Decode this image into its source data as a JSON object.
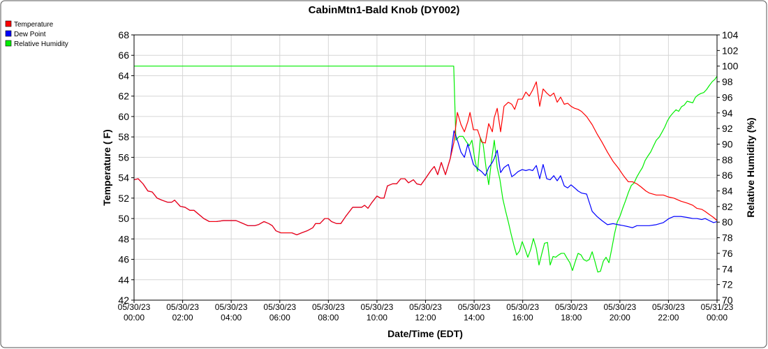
{
  "chart_data": {
    "type": "line",
    "title": "CabinMtn1-Bald Knob (DY002)",
    "xlabel": "Date/Time (EDT)",
    "ylabel": "Temperature ( F)",
    "y2label": "Relative Humidity (%)",
    "grid": true,
    "legend": "top-left",
    "xlim": [
      0,
      24
    ],
    "xticks": [
      {
        "value": 0,
        "label": "05/30/23 00:00"
      },
      {
        "value": 2,
        "label": "05/30/23 02:00"
      },
      {
        "value": 4,
        "label": "05/30/23 04:00"
      },
      {
        "value": 6,
        "label": "05/30/23 06:00"
      },
      {
        "value": 8,
        "label": "05/30/23 08:00"
      },
      {
        "value": 10,
        "label": "05/30/23 10:00"
      },
      {
        "value": 12,
        "label": "05/30/23 12:00"
      },
      {
        "value": 14,
        "label": "05/30/23 14:00"
      },
      {
        "value": 16,
        "label": "05/30/23 16:00"
      },
      {
        "value": 18,
        "label": "05/30/23 18:00"
      },
      {
        "value": 20,
        "label": "05/30/23 20:00"
      },
      {
        "value": 22,
        "label": "05/30/23 22:00"
      },
      {
        "value": 24,
        "label": "05/31/23 00:00"
      }
    ],
    "ylim": [
      42,
      68
    ],
    "yticks": [
      42,
      44,
      46,
      48,
      50,
      52,
      54,
      56,
      58,
      60,
      62,
      64,
      66,
      68
    ],
    "y2lim": [
      70,
      104
    ],
    "y2ticks": [
      70,
      72,
      74,
      76,
      78,
      80,
      82,
      84,
      86,
      88,
      90,
      92,
      94,
      96,
      98,
      100,
      102,
      104
    ],
    "series": [
      {
        "name": "Temperature",
        "color": "#ff0000",
        "x": [
          0,
          0.17,
          0.37,
          0.57,
          0.75,
          0.95,
          1.15,
          1.38,
          1.55,
          1.67,
          1.9,
          2.1,
          2.3,
          2.47,
          2.67,
          2.87,
          3.1,
          3.39,
          3.68,
          3.97,
          4.2,
          4.4,
          4.69,
          4.97,
          5.12,
          5.35,
          5.55,
          5.69,
          5.84,
          6.04,
          6.27,
          6.5,
          6.7,
          6.9,
          7.13,
          7.36,
          7.47,
          7.65,
          7.85,
          7.99,
          8.13,
          8.34,
          8.51,
          8.71,
          9.0,
          9.2,
          9.37,
          9.49,
          9.63,
          9.77,
          10.0,
          10.15,
          10.29,
          10.43,
          10.64,
          10.81,
          10.98,
          11.15,
          11.3,
          11.5,
          11.64,
          11.81,
          12.02,
          12.22,
          12.36,
          12.5,
          12.65,
          12.82,
          13.02,
          13.17,
          13.31,
          13.46,
          13.6,
          13.74,
          13.83,
          13.97,
          14.14,
          14.31,
          14.46,
          14.6,
          14.75,
          14.83,
          14.95,
          15.09,
          15.23,
          15.41,
          15.55,
          15.67,
          15.81,
          15.98,
          16.13,
          16.27,
          16.41,
          16.56,
          16.7,
          16.84,
          16.99,
          17.13,
          17.28,
          17.42,
          17.56,
          17.71,
          17.85,
          17.99,
          18.14,
          18.28,
          18.42,
          18.63,
          18.86,
          19.06,
          19.26,
          19.49,
          19.72,
          19.92,
          20.15,
          20.35,
          20.52,
          20.7,
          20.87,
          21.07,
          21.21,
          21.5,
          21.79,
          22.02,
          22.22,
          22.51,
          22.79,
          23.0,
          23.17,
          23.37,
          23.51,
          23.68,
          23.86,
          24.0
        ],
        "values": [
          53.8,
          53.9,
          53.4,
          52.7,
          52.6,
          52.0,
          51.8,
          51.6,
          51.6,
          51.8,
          51.2,
          51.1,
          50.8,
          50.8,
          50.4,
          50.0,
          49.7,
          49.7,
          49.8,
          49.8,
          49.8,
          49.6,
          49.3,
          49.3,
          49.4,
          49.7,
          49.5,
          49.3,
          48.8,
          48.6,
          48.6,
          48.6,
          48.4,
          48.6,
          48.8,
          49.1,
          49.5,
          49.5,
          50.0,
          50.0,
          49.7,
          49.5,
          49.5,
          50.2,
          51.1,
          51.1,
          51.1,
          51.3,
          51.0,
          51.5,
          52.2,
          52.0,
          52.0,
          53.2,
          53.4,
          53.4,
          53.9,
          53.9,
          53.5,
          53.8,
          53.4,
          53.3,
          54.0,
          54.7,
          55.1,
          54.3,
          55.5,
          54.3,
          55.9,
          57.5,
          60.4,
          59.2,
          58.5,
          59.5,
          60.4,
          58.7,
          58.7,
          57.5,
          57.4,
          59.3,
          58.5,
          59.9,
          60.8,
          58.5,
          61.0,
          61.4,
          61.2,
          60.7,
          61.7,
          61.7,
          62.4,
          62.0,
          62.6,
          63.4,
          61.0,
          62.7,
          62.3,
          62.0,
          62.3,
          61.4,
          61.9,
          61.2,
          61.3,
          61.0,
          60.8,
          60.7,
          60.5,
          60.0,
          59.2,
          58.3,
          57.5,
          56.5,
          55.6,
          55.0,
          54.2,
          53.6,
          53.6,
          53.4,
          53.1,
          52.7,
          52.5,
          52.3,
          52.3,
          52.1,
          52.0,
          51.7,
          51.5,
          51.3,
          51.0,
          50.9,
          50.7,
          50.4,
          50.1,
          49.8
        ]
      },
      {
        "name": "Dew Point",
        "color": "#0000ff",
        "x": [
          0,
          0.17,
          0.37,
          0.57,
          0.75,
          0.95,
          1.15,
          1.38,
          1.55,
          1.67,
          1.9,
          2.1,
          2.3,
          2.47,
          2.67,
          2.87,
          3.1,
          3.39,
          3.68,
          3.97,
          4.2,
          4.4,
          4.69,
          4.97,
          5.12,
          5.35,
          5.55,
          5.69,
          5.84,
          6.04,
          6.27,
          6.5,
          6.7,
          6.9,
          7.13,
          7.36,
          7.47,
          7.65,
          7.85,
          7.99,
          8.13,
          8.34,
          8.51,
          8.71,
          9.0,
          9.2,
          9.37,
          9.49,
          9.63,
          9.77,
          10.0,
          10.15,
          10.29,
          10.43,
          10.64,
          10.81,
          10.98,
          11.15,
          11.3,
          11.5,
          11.64,
          11.81,
          12.02,
          12.22,
          12.36,
          12.5,
          12.65,
          12.82,
          13.02,
          13.17,
          13.31,
          13.46,
          13.6,
          13.74,
          13.83,
          13.97,
          14.14,
          14.31,
          14.46,
          14.6,
          14.75,
          14.83,
          14.95,
          15.09,
          15.23,
          15.41,
          15.55,
          15.67,
          15.81,
          15.98,
          16.13,
          16.27,
          16.41,
          16.56,
          16.7,
          16.84,
          16.99,
          17.13,
          17.28,
          17.42,
          17.56,
          17.71,
          17.85,
          17.99,
          18.14,
          18.28,
          18.42,
          18.63,
          18.86,
          19.06,
          19.26,
          19.49,
          19.72,
          19.92,
          20.15,
          20.35,
          20.52,
          20.7,
          20.87,
          21.07,
          21.21,
          21.5,
          21.79,
          22.02,
          22.22,
          22.51,
          22.79,
          23.0,
          23.17,
          23.37,
          23.51,
          23.68,
          23.86,
          24.0
        ],
        "values": [
          53.8,
          53.9,
          53.4,
          52.7,
          52.6,
          52.0,
          51.8,
          51.6,
          51.6,
          51.8,
          51.2,
          51.1,
          50.8,
          50.8,
          50.4,
          50.0,
          49.7,
          49.7,
          49.8,
          49.8,
          49.8,
          49.6,
          49.3,
          49.3,
          49.4,
          49.7,
          49.5,
          49.3,
          48.8,
          48.6,
          48.6,
          48.6,
          48.4,
          48.6,
          48.8,
          49.1,
          49.5,
          49.5,
          50.0,
          50.0,
          49.7,
          49.5,
          49.5,
          50.2,
          51.1,
          51.1,
          51.1,
          51.3,
          51.0,
          51.5,
          52.2,
          52.0,
          52.0,
          53.2,
          53.4,
          53.4,
          53.9,
          53.9,
          53.5,
          53.8,
          53.4,
          53.3,
          54.0,
          54.7,
          55.1,
          54.3,
          55.5,
          54.3,
          55.9,
          58.6,
          57.7,
          56.5,
          56.0,
          57.3,
          56.5,
          55.3,
          54.9,
          54.6,
          54.2,
          55.0,
          55.5,
          55.9,
          56.7,
          54.5,
          55.0,
          55.3,
          54.1,
          54.3,
          54.6,
          54.8,
          54.7,
          54.8,
          54.7,
          55.2,
          53.9,
          55.3,
          53.9,
          53.8,
          54.2,
          53.7,
          54.2,
          53.2,
          53.0,
          53.3,
          53.0,
          52.7,
          52.5,
          52.4,
          50.7,
          50.2,
          49.8,
          49.4,
          49.5,
          49.4,
          49.3,
          49.2,
          49.1,
          49.3,
          49.3,
          49.3,
          49.3,
          49.4,
          49.6,
          50.0,
          50.2,
          50.2,
          50.1,
          50.0,
          50.0,
          49.9,
          50.0,
          49.8,
          49.6,
          49.7
        ]
      },
      {
        "name": "Relative Humidity",
        "color": "#00ee00",
        "axis": "y2",
        "x": [
          0,
          13.16,
          13.25,
          13.39,
          13.54,
          13.68,
          13.8,
          13.91,
          14.03,
          14.14,
          14.26,
          14.37,
          14.49,
          14.6,
          14.72,
          14.83,
          14.95,
          15.06,
          15.18,
          15.29,
          15.41,
          15.52,
          15.64,
          15.75,
          15.87,
          15.98,
          16.1,
          16.21,
          16.33,
          16.44,
          16.56,
          16.67,
          16.79,
          16.9,
          17.02,
          17.13,
          17.25,
          17.36,
          17.48,
          17.59,
          17.71,
          17.82,
          17.94,
          18.05,
          18.17,
          18.28,
          18.4,
          18.51,
          18.63,
          18.74,
          18.86,
          18.97,
          19.09,
          19.2,
          19.32,
          19.43,
          19.55,
          19.66,
          19.78,
          19.89,
          20.01,
          20.12,
          20.24,
          20.35,
          20.47,
          20.58,
          20.7,
          20.81,
          20.93,
          21.04,
          21.16,
          21.27,
          21.39,
          21.5,
          21.62,
          21.73,
          21.85,
          21.96,
          22.08,
          22.19,
          22.31,
          22.42,
          22.54,
          22.65,
          22.77,
          22.88,
          23.0,
          23.11,
          23.22,
          23.34,
          23.45,
          23.57,
          23.68,
          23.8,
          23.91,
          24.0
        ],
        "values": [
          100,
          100,
          90.5,
          91.0,
          91.0,
          90.3,
          89.8,
          90.5,
          88.0,
          86.5,
          90.8,
          90.0,
          87.0,
          84.8,
          88.0,
          90.5,
          87.0,
          85.5,
          83.0,
          81.5,
          80.0,
          78.5,
          77.0,
          75.8,
          76.3,
          77.5,
          76.5,
          75.5,
          76.5,
          77.9,
          76.6,
          74.5,
          76.0,
          77.3,
          77.4,
          74.5,
          75.6,
          75.5,
          75.8,
          76.0,
          76.0,
          75.4,
          74.8,
          73.8,
          75.0,
          76.0,
          75.8,
          75.2,
          75.0,
          75.2,
          76.2,
          75.0,
          73.6,
          73.7,
          75.0,
          75.5,
          74.8,
          76.5,
          78.5,
          80.0,
          80.8,
          81.8,
          82.8,
          83.8,
          84.7,
          85.0,
          85.8,
          86.4,
          87.0,
          87.9,
          88.5,
          89.0,
          89.8,
          90.5,
          90.9,
          91.5,
          92.2,
          93.0,
          93.6,
          94.0,
          94.4,
          94.2,
          94.8,
          95.0,
          95.5,
          95.4,
          95.3,
          96.0,
          96.3,
          96.5,
          96.6,
          97.0,
          97.5,
          98.0,
          98.3,
          98.7
        ]
      }
    ]
  }
}
